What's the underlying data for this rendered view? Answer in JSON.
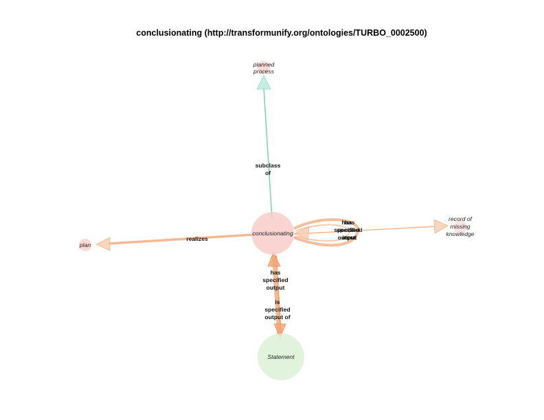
{
  "title": "conclusionating (http://transformunify.org/ontologies/TURBO_0002500)",
  "colors": {
    "teal_edge": "#7fd3bd",
    "orange_edge": "#f2a878",
    "orange_edge_dark": "#e97f45",
    "node_pink": "#f9c9c5",
    "node_green": "#d9f0d3"
  },
  "nodes": {
    "center": {
      "label": "conclusionating"
    },
    "planned_process": {
      "label_lines": [
        "planned",
        "process"
      ]
    },
    "plan": {
      "label": "plan"
    },
    "record": {
      "label_lines": [
        "record of",
        "missing",
        "knowledge"
      ]
    },
    "statement": {
      "label": "Statement"
    }
  },
  "edges": {
    "subclass_of": {
      "label_lines": [
        "subclass",
        "of"
      ]
    },
    "realizes": {
      "label": "realizes"
    },
    "loop_has_specified_output": {
      "label_lines": [
        "has",
        "specified",
        "output"
      ]
    },
    "loop_has_specified_input": {
      "label_lines": [
        "has",
        "specified",
        "input"
      ]
    },
    "has_specified_output": {
      "label_lines": [
        "has",
        "specified",
        "output"
      ]
    },
    "is_specified_output_of": {
      "label_lines": [
        "is",
        "specified",
        "output of"
      ]
    }
  }
}
